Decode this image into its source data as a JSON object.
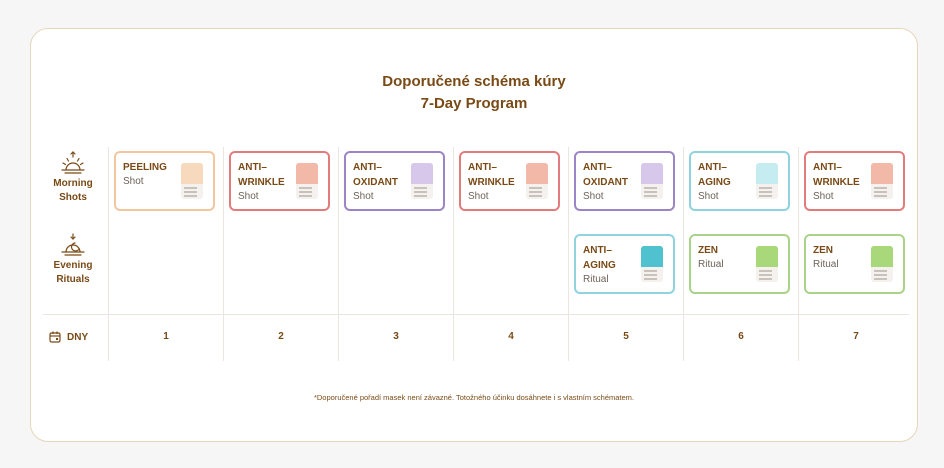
{
  "title": {
    "line1": "Doporučené schéma kúry",
    "line2": "7-Day Program"
  },
  "rows": {
    "morning": {
      "line1": "Morning",
      "line2": "Shots",
      "icon": "sunrise-icon"
    },
    "evening": {
      "line1": "Evening",
      "line2": "Rituals",
      "icon": "sunset-icon"
    }
  },
  "days_label": "DNY",
  "days_icon": "calendar-icon",
  "days": [
    "1",
    "2",
    "3",
    "4",
    "5",
    "6",
    "7"
  ],
  "morning": [
    {
      "name": "PEELING",
      "kind": "Shot",
      "color": "#f2c6a0",
      "tint": "#f7d9be"
    },
    {
      "name": "ANTI–\nWRINKLE",
      "kind": "Shot",
      "color": "#e27c7c",
      "tint": "#f2b8a8"
    },
    {
      "name": "ANTI–\nOXIDANT",
      "kind": "Shot",
      "color": "#9d84c6",
      "tint": "#d7c7ea"
    },
    {
      "name": "ANTI–\nWRINKLE",
      "kind": "Shot",
      "color": "#e27c7c",
      "tint": "#f2b8a8"
    },
    {
      "name": "ANTI–\nOXIDANT",
      "kind": "Shot",
      "color": "#9d84c6",
      "tint": "#d7c7ea"
    },
    {
      "name": "ANTI–\nAGING",
      "kind": "Shot",
      "color": "#8ed3dd",
      "tint": "#c4ecf1"
    },
    {
      "name": "ANTI–\nWRINKLE",
      "kind": "Shot",
      "color": "#e27c7c",
      "tint": "#f2b8a8"
    }
  ],
  "evening": [
    null,
    null,
    null,
    null,
    {
      "name": "ANTI–\nAGING",
      "kind": "Ritual",
      "color": "#8ed3dd",
      "tint": "#4fc1cf"
    },
    {
      "name": "ZEN",
      "kind": "Ritual",
      "color": "#a9d38a",
      "tint": "#a9d87a"
    },
    {
      "name": "ZEN",
      "kind": "Ritual",
      "color": "#a9d38a",
      "tint": "#a9d87a"
    }
  ],
  "footnote": "*Doporučené pořadí masek není závazné. Totožného účinku dosáhnete i s vlastním schématem.",
  "colors": {
    "brand_text": "#7a4a16",
    "card_border": "#e6d6ba"
  }
}
